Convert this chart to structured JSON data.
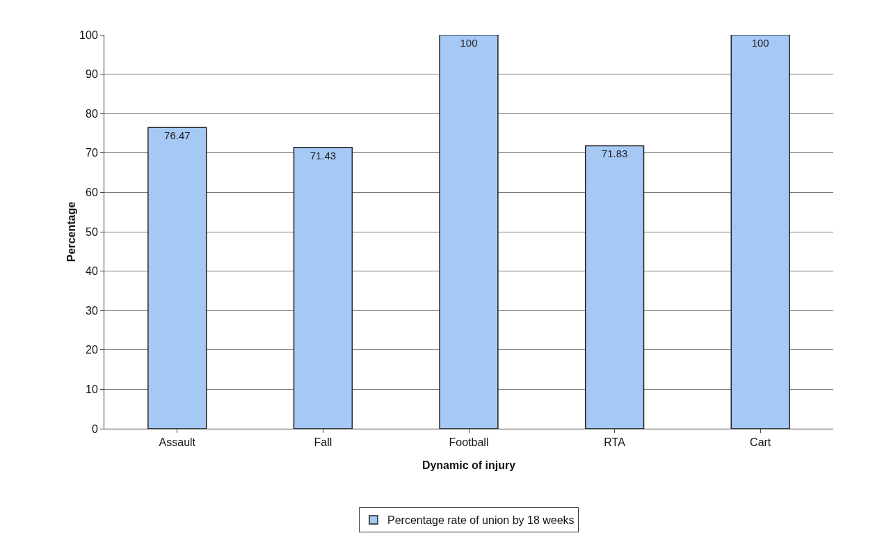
{
  "chart_data": {
    "type": "bar",
    "xlabel": "Dynamic of injury",
    "ylabel": "Percentage",
    "categories": [
      "Assault",
      "Fall",
      "Football",
      "RTA",
      "Cart"
    ],
    "series": [
      {
        "name": "Percentage rate of union by 18 weeks",
        "color": "#a6c8f4",
        "values": [
          76.47,
          71.43,
          100,
          71.83,
          100
        ]
      }
    ],
    "ylim": [
      0,
      100
    ],
    "yticks": [
      0,
      10,
      20,
      30,
      40,
      50,
      60,
      70,
      80,
      90,
      100
    ],
    "grid": "y",
    "legend": "bottom",
    "data_labels": true
  }
}
